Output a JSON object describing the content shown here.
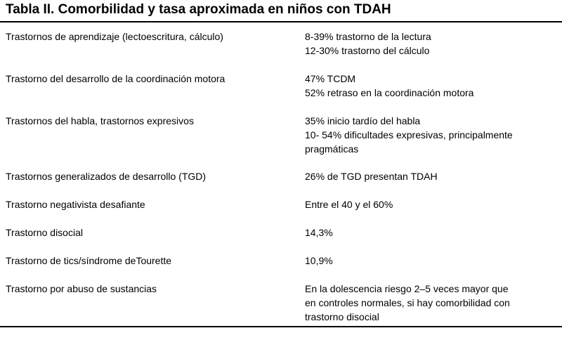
{
  "title": "Tabla II. Comorbilidad y tasa aproximada en niños con TDAH",
  "rows": [
    {
      "condition": "Trastornos de aprendizaje (lectoescritura, cálculo)",
      "rates": [
        "8-39% trastorno de la lectura",
        "12-30% trastorno del cálculo"
      ]
    },
    {
      "condition": "Trastorno del desarrollo de la coordinación motora",
      "rates": [
        "47% TCDM",
        "52% retraso en la coordinación motora"
      ]
    },
    {
      "condition": "Trastornos del habla, trastornos expresivos",
      "rates": [
        "35% inicio tardío del habla",
        "10- 54% dificultades expresivas, principalmente",
        "pragmáticas"
      ]
    },
    {
      "condition": "Trastornos generalizados de desarrollo (TGD)",
      "rates": [
        "26% de TGD presentan TDAH"
      ]
    },
    {
      "condition": "Trastorno negativista desafiante",
      "rates": [
        "Entre el 40 y el 60%"
      ]
    },
    {
      "condition": "Trastorno disocial",
      "rates": [
        "14,3%"
      ]
    },
    {
      "condition": "Trastorno de tics/síndrome deTourette",
      "rates": [
        "10,9%"
      ]
    },
    {
      "condition": "Trastorno por abuso de sustancias",
      "rates": [
        "En la dolescencia riesgo 2–5 veces mayor que",
        "en controles normales, si hay comorbilidad con",
        "trastorno disocial"
      ]
    }
  ]
}
